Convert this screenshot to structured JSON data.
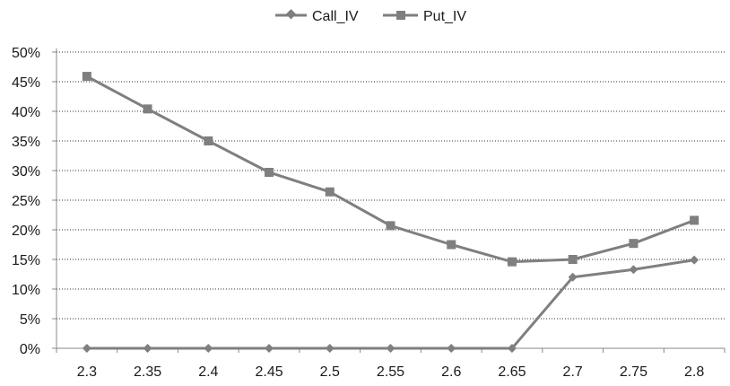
{
  "chart_data": {
    "type": "line",
    "x": [
      2.3,
      2.35,
      2.4,
      2.45,
      2.5,
      2.55,
      2.6,
      2.65,
      2.7,
      2.75,
      2.8
    ],
    "x_tick_labels": [
      "2.3",
      "2.35",
      "2.4",
      "2.45",
      "2.5",
      "2.55",
      "2.6",
      "2.65",
      "2.7",
      "2.75",
      "2.8"
    ],
    "y_tick_labels": [
      "0%",
      "5%",
      "10%",
      "15%",
      "20%",
      "25%",
      "30%",
      "35%",
      "40%",
      "45%",
      "50%"
    ],
    "ylim": [
      0,
      0.5
    ],
    "grid": "horizontal dotted",
    "legend_position": "top",
    "series": [
      {
        "name": "Call_IV",
        "marker": "diamond",
        "color": "#7f7f7f",
        "values": [
          0,
          0,
          0,
          0,
          0,
          0,
          0,
          0,
          0.12,
          0.133,
          0.149
        ]
      },
      {
        "name": "Put_IV",
        "marker": "square",
        "color": "#7f7f7f",
        "values": [
          0.459,
          0.404,
          0.35,
          0.297,
          0.264,
          0.207,
          0.175,
          0.146,
          0.15,
          0.177,
          0.216
        ]
      }
    ]
  }
}
